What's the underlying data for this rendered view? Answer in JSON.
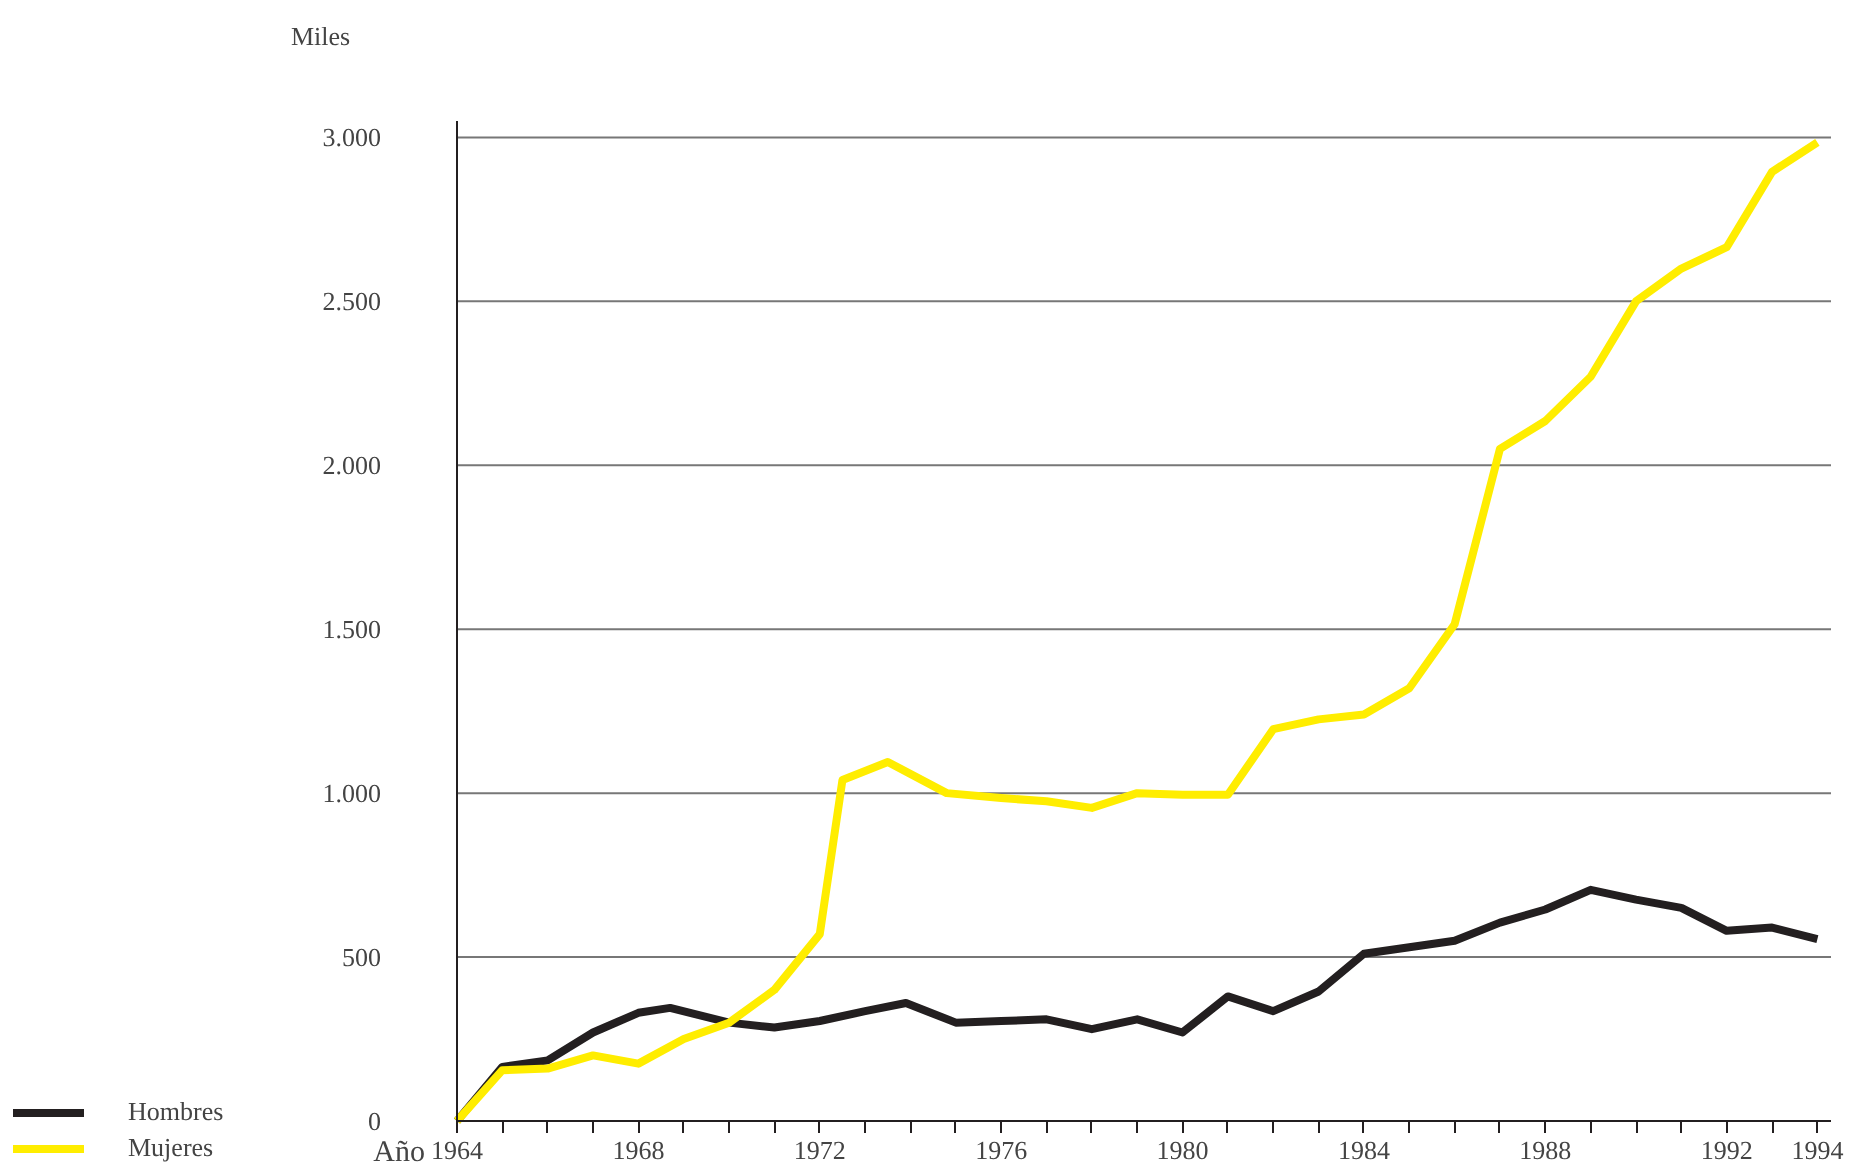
{
  "chart_data": {
    "type": "line",
    "ylabel": "Miles",
    "xlabel": "Año",
    "xlim": [
      1964,
      1994.3
    ],
    "ylim": [
      0,
      3050
    ],
    "yticks": [
      {
        "value": 0,
        "label": "0"
      },
      {
        "value": 500,
        "label": "500"
      },
      {
        "value": 1000,
        "label": "1.000"
      },
      {
        "value": 1500,
        "label": "1.500"
      },
      {
        "value": 2000,
        "label": "2.000"
      },
      {
        "value": 2500,
        "label": "2.500"
      },
      {
        "value": 3000,
        "label": "3.000"
      }
    ],
    "xticks": [
      1964,
      {
        "value": 1965,
        "label": null
      },
      {
        "value": 1966,
        "label": null
      },
      {
        "value": 1967,
        "label": null
      },
      1968,
      {
        "value": 1969,
        "label": null
      },
      {
        "value": 1970,
        "label": null
      },
      {
        "value": 1971,
        "label": null
      },
      1972,
      {
        "value": 1973,
        "label": null
      },
      {
        "value": 1974,
        "label": null
      },
      {
        "value": 1975,
        "label": null
      },
      1976,
      {
        "value": 1977,
        "label": null
      },
      {
        "value": 1978,
        "label": null
      },
      {
        "value": 1979,
        "label": null
      },
      1980,
      {
        "value": 1981,
        "label": null
      },
      {
        "value": 1982,
        "label": null
      },
      {
        "value": 1983,
        "label": null
      },
      1984,
      {
        "value": 1985,
        "label": null
      },
      {
        "value": 1986,
        "label": null
      },
      {
        "value": 1987,
        "label": null
      },
      1988,
      {
        "value": 1989,
        "label": null
      },
      {
        "value": 1990,
        "label": null
      },
      {
        "value": 1991,
        "label": null
      },
      1992,
      {
        "value": 1993,
        "label": null
      },
      1994
    ],
    "grid": "y",
    "legend": "bottom left",
    "marker": "none",
    "line_style": "solid",
    "series": [
      {
        "name": "Hombres",
        "color": "#231f20",
        "x": [
          1964,
          1965,
          1966,
          1967,
          1968,
          1968.7,
          1970,
          1971,
          1972,
          1973,
          1973.9,
          1975,
          1976,
          1977,
          1978,
          1979,
          1980,
          1981,
          1982,
          1983,
          1984,
          1985,
          1986,
          1987,
          1988,
          1989,
          1990,
          1991,
          1992,
          1993,
          1994
        ],
        "values": [
          0,
          165,
          185,
          270,
          330,
          345,
          300,
          285,
          305,
          335,
          360,
          300,
          305,
          310,
          280,
          310,
          270,
          380,
          335,
          395,
          510,
          530,
          550,
          605,
          645,
          705,
          675,
          650,
          580,
          590,
          555
        ]
      },
      {
        "name": "Mujeres",
        "color": "#ffed00",
        "x": [
          1964,
          1965,
          1966,
          1967,
          1968,
          1969,
          1970,
          1971,
          1972,
          1972.5,
          1973.5,
          1974.8,
          1976,
          1977,
          1978,
          1979,
          1980,
          1981,
          1982,
          1983,
          1984,
          1985,
          1986,
          1987,
          1988,
          1989,
          1990,
          1991,
          1992,
          1993,
          1994
        ],
        "values": [
          0,
          155,
          160,
          200,
          175,
          250,
          300,
          400,
          570,
          1040,
          1095,
          1000,
          985,
          975,
          955,
          1000,
          995,
          995,
          1195,
          1225,
          1240,
          1320,
          1515,
          2050,
          2135,
          2270,
          2500,
          2600,
          2665,
          2895,
          2985
        ]
      }
    ]
  }
}
